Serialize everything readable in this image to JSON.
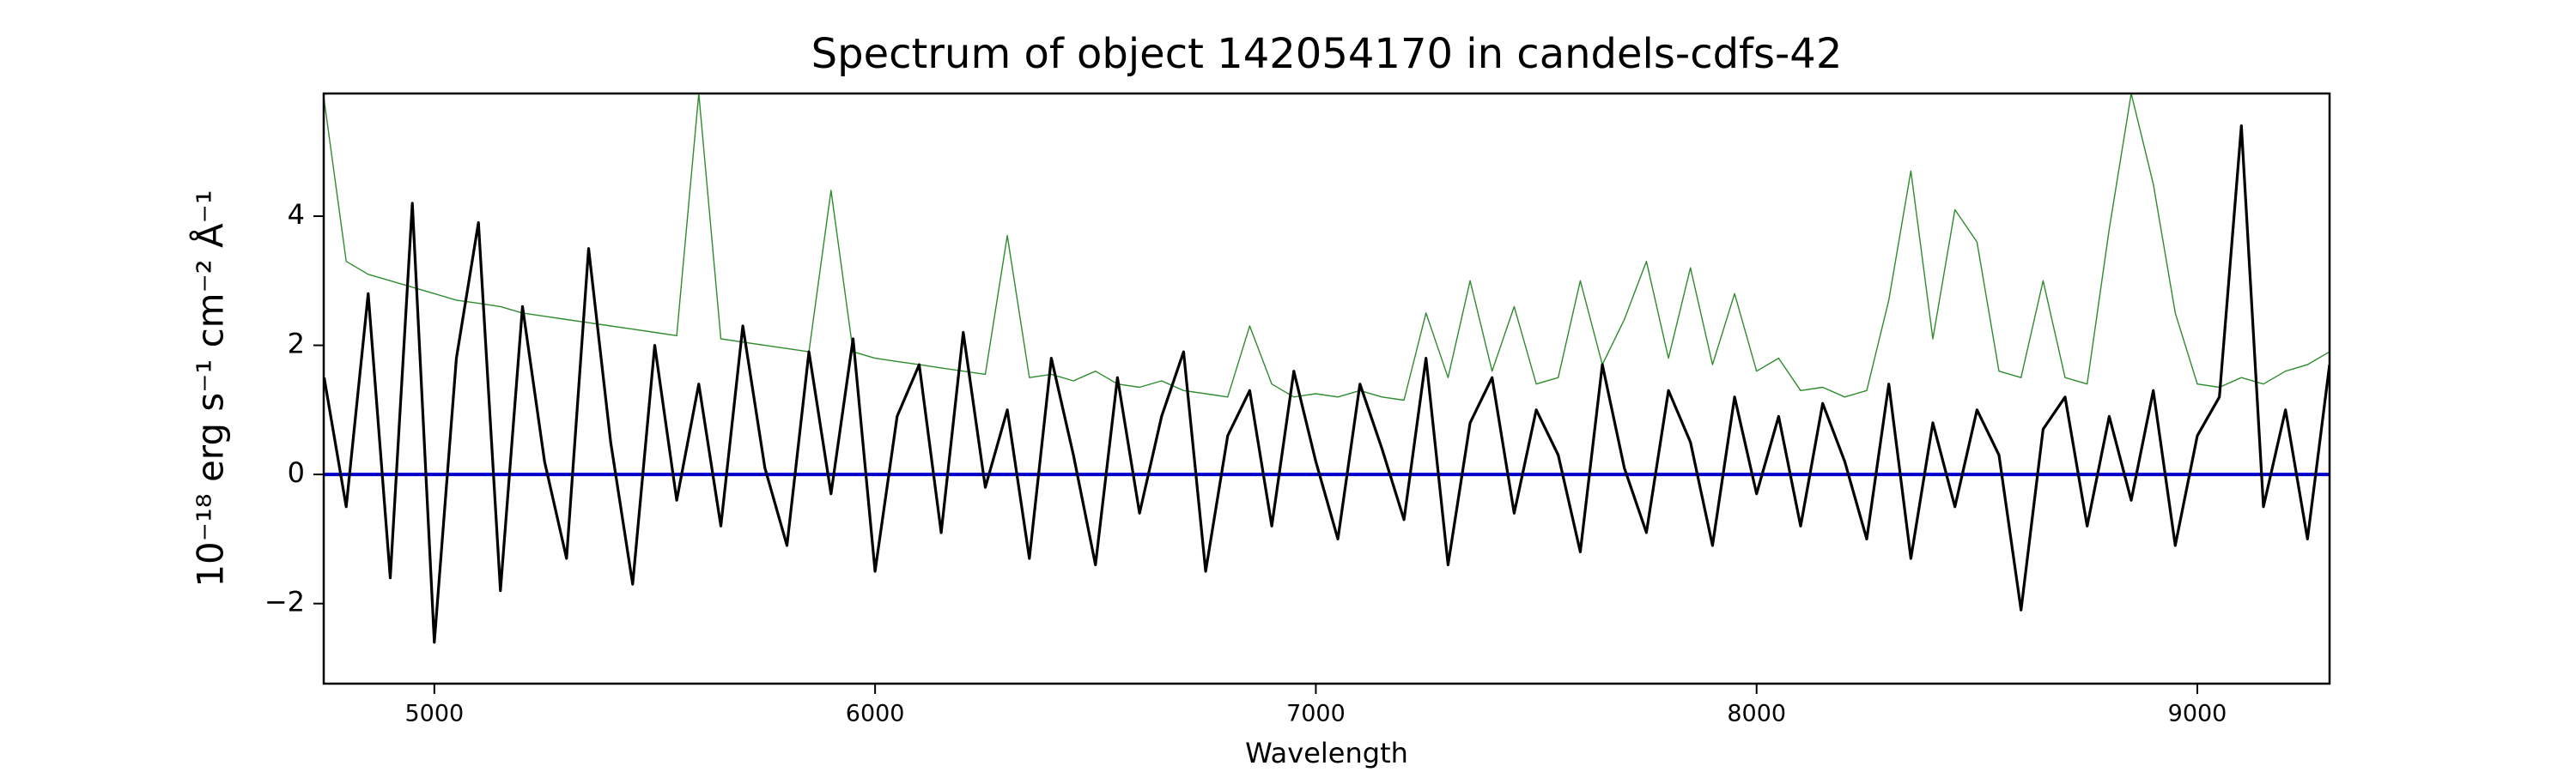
{
  "chart_data": {
    "type": "line",
    "title": "Spectrum of object 142054170 in candels-cdfs-42",
    "xlabel": "Wavelength",
    "ylabel": "10⁻¹⁸ erg s⁻¹ cm⁻² Å⁻¹",
    "x": [
      4750,
      4800,
      4850,
      4900,
      4950,
      5000,
      5050,
      5100,
      5150,
      5200,
      5250,
      5300,
      5350,
      5400,
      5450,
      5500,
      5550,
      5600,
      5650,
      5700,
      5750,
      5800,
      5850,
      5900,
      5950,
      6000,
      6050,
      6100,
      6150,
      6200,
      6250,
      6300,
      6350,
      6400,
      6450,
      6500,
      6550,
      6600,
      6650,
      6700,
      6750,
      6800,
      6850,
      6900,
      6950,
      7000,
      7050,
      7100,
      7150,
      7200,
      7250,
      7300,
      7350,
      7400,
      7450,
      7500,
      7550,
      7600,
      7650,
      7700,
      7750,
      7800,
      7850,
      7900,
      7950,
      8000,
      8050,
      8100,
      8150,
      8200,
      8250,
      8300,
      8350,
      8400,
      8450,
      8500,
      8550,
      8600,
      8650,
      8700,
      8750,
      8800,
      8850,
      8900,
      8950,
      9000,
      9050,
      9100,
      9150,
      9200,
      9250,
      9300
    ],
    "series": [
      {
        "color": "#000000",
        "values": [
          1.5,
          -0.5,
          2.8,
          -1.6,
          4.2,
          -2.6,
          1.8,
          3.9,
          -1.8,
          2.6,
          0.2,
          -1.3,
          3.5,
          0.5,
          -1.7,
          2.0,
          -0.4,
          1.4,
          -0.8,
          2.3,
          0.1,
          -1.1,
          1.9,
          -0.3,
          2.1,
          -1.5,
          0.9,
          1.7,
          -0.9,
          2.2,
          -0.2,
          1.0,
          -1.3,
          1.8,
          0.3,
          -1.4,
          1.5,
          -0.6,
          0.9,
          1.9,
          -1.5,
          0.6,
          1.3,
          -0.8,
          1.6,
          0.2,
          -1.0,
          1.4,
          0.4,
          -0.7,
          1.8,
          -1.4,
          0.8,
          1.5,
          -0.6,
          1.0,
          0.3,
          -1.2,
          1.7,
          0.1,
          -0.9,
          1.3,
          0.5,
          -1.1,
          1.2,
          -0.3,
          0.9,
          -0.8,
          1.1,
          0.2,
          -1.0,
          1.4,
          -1.3,
          0.8,
          -0.5,
          1.0,
          0.3,
          -2.1,
          0.7,
          1.2,
          -0.8,
          0.9,
          -0.4,
          1.3,
          -1.1,
          0.6,
          1.2,
          5.4,
          -0.5,
          1.0,
          -1.0,
          1.7
        ]
      },
      {
        "color": "#2e8b2e",
        "values": [
          5.8,
          3.3,
          3.1,
          3.0,
          2.9,
          2.8,
          2.7,
          2.65,
          2.6,
          2.5,
          2.45,
          2.4,
          2.35,
          2.3,
          2.25,
          2.2,
          2.15,
          5.9,
          2.1,
          2.05,
          2.0,
          1.95,
          1.9,
          4.4,
          1.9,
          1.8,
          1.75,
          1.7,
          1.65,
          1.6,
          1.55,
          3.7,
          1.5,
          1.55,
          1.45,
          1.6,
          1.4,
          1.35,
          1.45,
          1.3,
          1.25,
          1.2,
          2.3,
          1.4,
          1.2,
          1.25,
          1.2,
          1.3,
          1.2,
          1.15,
          2.5,
          1.5,
          3.0,
          1.6,
          2.6,
          1.4,
          1.5,
          3.0,
          1.7,
          2.4,
          3.3,
          1.8,
          3.2,
          1.7,
          2.8,
          1.6,
          1.8,
          1.3,
          1.35,
          1.2,
          1.3,
          2.7,
          4.7,
          2.1,
          4.1,
          3.6,
          1.6,
          1.5,
          3.0,
          1.5,
          1.4,
          3.8,
          5.9,
          4.5,
          2.5,
          1.4,
          1.35,
          1.5,
          1.4,
          1.6,
          1.7,
          1.9
        ]
      },
      {
        "color": "#0000cc",
        "values": [
          0,
          0,
          0,
          0,
          0,
          0,
          0,
          0,
          0,
          0,
          0,
          0,
          0,
          0,
          0,
          0,
          0,
          0,
          0,
          0,
          0,
          0,
          0,
          0,
          0,
          0,
          0,
          0,
          0,
          0,
          0,
          0,
          0,
          0,
          0,
          0,
          0,
          0,
          0,
          0,
          0,
          0,
          0,
          0,
          0,
          0,
          0,
          0,
          0,
          0,
          0,
          0,
          0,
          0,
          0,
          0,
          0,
          0,
          0,
          0,
          0,
          0,
          0,
          0,
          0,
          0,
          0,
          0,
          0,
          0,
          0,
          0,
          0,
          0,
          0,
          0,
          0,
          0,
          0,
          0,
          0,
          0,
          0,
          0,
          0,
          0,
          0,
          0,
          0,
          0,
          0,
          0
        ]
      }
    ],
    "xlim": [
      4749,
      9300
    ],
    "ylim": [
      -3.24,
      5.9
    ],
    "xticks": [
      5000,
      6000,
      7000,
      8000,
      9000
    ],
    "yticks": [
      {
        "value": -2,
        "label": "−2"
      },
      0,
      2,
      4
    ]
  }
}
